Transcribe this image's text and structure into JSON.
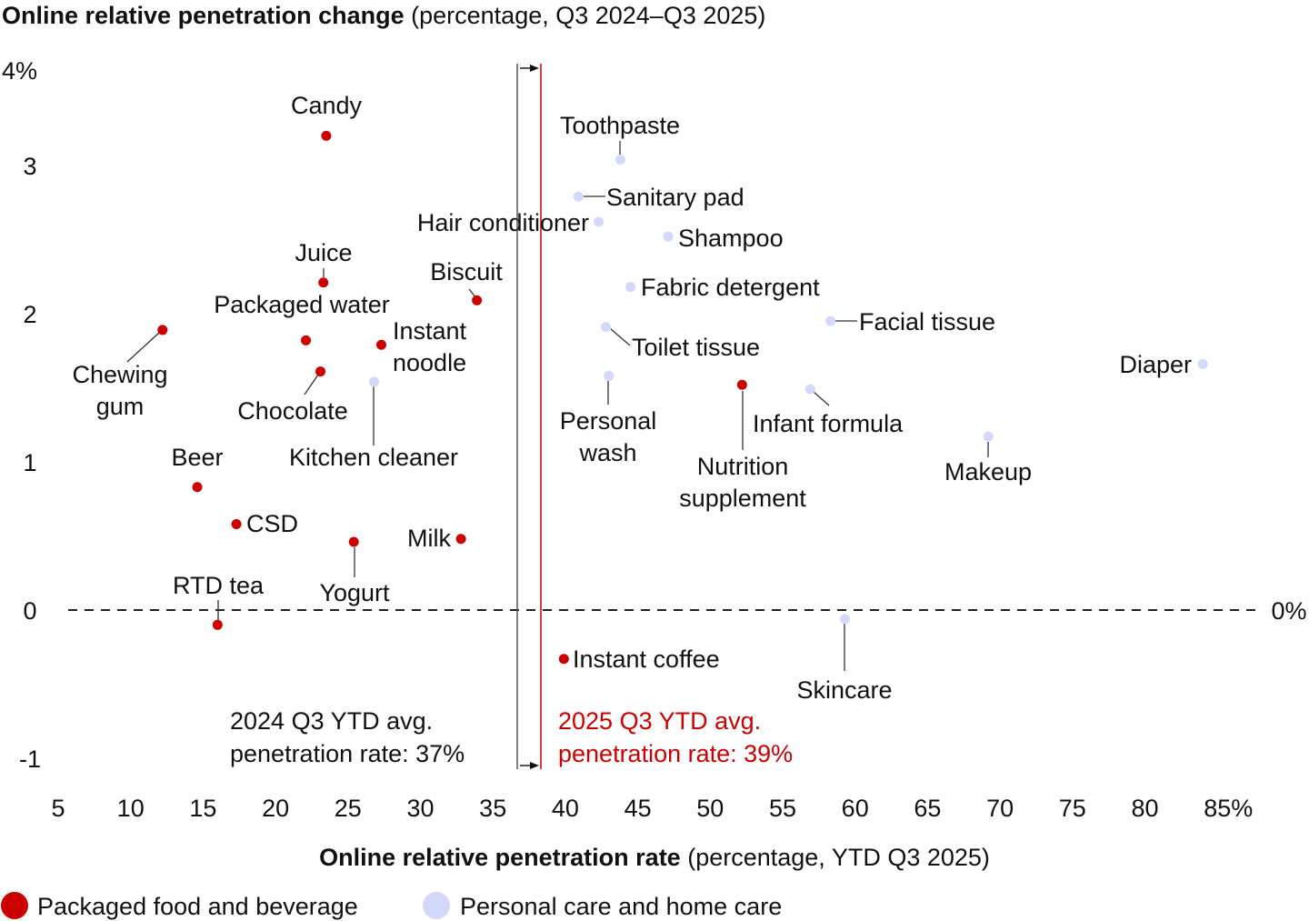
{
  "chart_data": {
    "type": "scatter",
    "title": {
      "bold": "Online relative penetration change",
      "normal": " (percentage, Q3 2024–Q3 2025)"
    },
    "xlabel": {
      "bold": "Online relative penetration rate",
      "normal": " (percentage, YTD Q3 2025)"
    },
    "xlim": [
      5,
      85
    ],
    "ylim": [
      -1,
      4
    ],
    "x_ticks": [
      "5",
      "10",
      "15",
      "20",
      "25",
      "30",
      "35",
      "40",
      "45",
      "50",
      "55",
      "60",
      "65",
      "70",
      "75",
      "80",
      "85%"
    ],
    "x_tick_values": [
      5,
      10,
      15,
      20,
      25,
      30,
      35,
      40,
      45,
      50,
      55,
      60,
      65,
      70,
      75,
      80,
      85
    ],
    "y_ticks": [
      "4%",
      "3",
      "2",
      "1",
      "0",
      "-1"
    ],
    "y_tick_values": [
      4,
      3,
      2,
      1,
      0,
      -1
    ],
    "zero_line_label": "0%",
    "grid": false,
    "colors": {
      "Packaged food and beverage": "#cc0000",
      "Personal care and home care": "#d4d8fa",
      "avg_2024": "#555555",
      "avg_2025": "#cc0000"
    },
    "reference_lines": [
      {
        "value": 37,
        "label_line1": "2024 Q3 YTD avg.",
        "label_line2": "penetration rate: 37%"
      },
      {
        "value": 39,
        "label_line1": "2025 Q3 YTD avg.",
        "label_line2": "penetration rate: 39%"
      }
    ],
    "legend": {
      "placement": "bottom-left",
      "entries": [
        "Packaged food and beverage",
        "Personal care and home care"
      ]
    },
    "points": [
      {
        "name": "Candy",
        "x": 23.5,
        "y": 3.2,
        "group": "Packaged food and beverage"
      },
      {
        "name": "Toothpaste",
        "x": 43.8,
        "y": 3.04,
        "group": "Personal care and home care"
      },
      {
        "name": "Sanitary pad",
        "x": 40.9,
        "y": 2.79,
        "group": "Personal care and home care"
      },
      {
        "name": "Hair conditioner",
        "x": 42.3,
        "y": 2.62,
        "group": "Personal care and home care"
      },
      {
        "name": "Shampoo",
        "x": 47.1,
        "y": 2.52,
        "group": "Personal care and home care"
      },
      {
        "name": "Juice",
        "x": 23.3,
        "y": 2.21,
        "group": "Packaged food and beverage"
      },
      {
        "name": "Biscuit",
        "x": 33.9,
        "y": 2.09,
        "group": "Packaged food and beverage"
      },
      {
        "name": "Packaged water",
        "x": 22.1,
        "y": 1.82,
        "group": "Packaged food and beverage"
      },
      {
        "name": "Fabric detergent",
        "x": 44.5,
        "y": 2.18,
        "group": "Personal care and home care"
      },
      {
        "name": "Instant noodle",
        "x": 27.3,
        "y": 1.79,
        "group": "Packaged food and beverage"
      },
      {
        "name": "Facial tissue",
        "x": 58.3,
        "y": 1.95,
        "group": "Personal care and home care"
      },
      {
        "name": "Toilet tissue",
        "x": 42.8,
        "y": 1.91,
        "group": "Personal care and home care"
      },
      {
        "name": "Chewing gum",
        "x": 12.2,
        "y": 1.89,
        "group": "Packaged food and beverage"
      },
      {
        "name": "Diaper",
        "x": 84.0,
        "y": 1.66,
        "group": "Personal care and home care"
      },
      {
        "name": "Chocolate",
        "x": 23.1,
        "y": 1.61,
        "group": "Packaged food and beverage"
      },
      {
        "name": "Kitchen cleaner",
        "x": 26.8,
        "y": 1.54,
        "group": "Personal care and home care"
      },
      {
        "name": "Personal wash",
        "x": 43.0,
        "y": 1.58,
        "group": "Personal care and home care"
      },
      {
        "name": "Nutrition supplement",
        "x": 52.2,
        "y": 1.52,
        "group": "Packaged food and beverage"
      },
      {
        "name": "Infant formula",
        "x": 56.9,
        "y": 1.49,
        "group": "Personal care and home care"
      },
      {
        "name": "Makeup",
        "x": 69.2,
        "y": 1.17,
        "group": "Personal care and home care"
      },
      {
        "name": "Beer",
        "x": 14.6,
        "y": 0.83,
        "group": "Packaged food and beverage"
      },
      {
        "name": "CSD",
        "x": 17.3,
        "y": 0.58,
        "group": "Packaged food and beverage"
      },
      {
        "name": "Milk",
        "x": 32.8,
        "y": 0.48,
        "group": "Packaged food and beverage"
      },
      {
        "name": "Yogurt",
        "x": 25.4,
        "y": 0.46,
        "group": "Packaged food and beverage"
      },
      {
        "name": "RTD tea",
        "x": 16.0,
        "y": -0.1,
        "group": "Packaged food and beverage"
      },
      {
        "name": "Instant coffee",
        "x": 39.9,
        "y": -0.33,
        "group": "Packaged food and beverage"
      },
      {
        "name": "Skincare",
        "x": 59.3,
        "y": -0.06,
        "group": "Personal care and home care"
      }
    ]
  }
}
